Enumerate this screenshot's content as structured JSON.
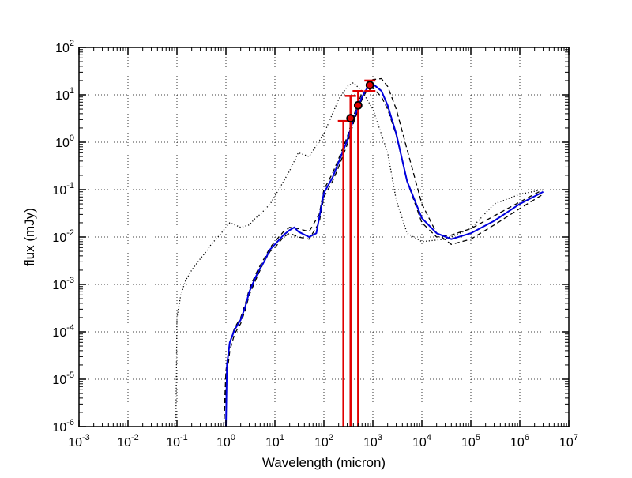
{
  "chart_data": {
    "type": "line",
    "xlabel": "Wavelength (micron)",
    "ylabel": "flux (mJy)",
    "x_scale": "log",
    "y_scale": "log",
    "xlim": [
      0.001,
      10000000
    ],
    "ylim": [
      1e-06,
      100
    ],
    "grid": true,
    "x_ticks": [
      {
        "value": 0.001,
        "base": "10",
        "exp": "-3"
      },
      {
        "value": 0.01,
        "base": "10",
        "exp": "-2"
      },
      {
        "value": 0.1,
        "base": "10",
        "exp": "-1"
      },
      {
        "value": 1,
        "base": "10",
        "exp": "0"
      },
      {
        "value": 10,
        "base": "10",
        "exp": "1"
      },
      {
        "value": 100,
        "base": "10",
        "exp": "2"
      },
      {
        "value": 1000,
        "base": "10",
        "exp": "3"
      },
      {
        "value": 10000,
        "base": "10",
        "exp": "4"
      },
      {
        "value": 100000,
        "base": "10",
        "exp": "5"
      },
      {
        "value": 1000000,
        "base": "10",
        "exp": "6"
      },
      {
        "value": 10000000,
        "base": "10",
        "exp": "7"
      }
    ],
    "y_ticks": [
      {
        "value": 1e-06,
        "base": "10",
        "exp": "-6"
      },
      {
        "value": 1e-05,
        "base": "10",
        "exp": "-5"
      },
      {
        "value": 0.0001,
        "base": "10",
        "exp": "-4"
      },
      {
        "value": 0.001,
        "base": "10",
        "exp": "-3"
      },
      {
        "value": 0.01,
        "base": "10",
        "exp": "-2"
      },
      {
        "value": 0.1,
        "base": "10",
        "exp": "-1"
      },
      {
        "value": 1,
        "base": "10",
        "exp": "0"
      },
      {
        "value": 10,
        "base": "10",
        "exp": "1"
      },
      {
        "value": 100,
        "base": "10",
        "exp": "2"
      }
    ],
    "series": [
      {
        "style": "dotted",
        "color": "#000000",
        "x": [
          0.095,
          0.1,
          0.12,
          0.15,
          0.2,
          0.3,
          0.4,
          0.5,
          0.8,
          1.2,
          2,
          3,
          4,
          5,
          8,
          12,
          20,
          30,
          50,
          100,
          150,
          200,
          300,
          400,
          600,
          1000,
          2000,
          3000,
          5000,
          10000,
          30000,
          100000,
          300000,
          1000000,
          3000000
        ],
        "y": [
          1e-06,
          0.0002,
          0.0006,
          0.0012,
          0.002,
          0.0035,
          0.005,
          0.007,
          0.012,
          0.02,
          0.016,
          0.018,
          0.025,
          0.03,
          0.05,
          0.1,
          0.25,
          0.6,
          0.5,
          1.5,
          4,
          8,
          15,
          18,
          12,
          5,
          0.6,
          0.06,
          0.012,
          0.008,
          0.009,
          0.015,
          0.05,
          0.08,
          0.1
        ]
      },
      {
        "style": "dashed",
        "color": "#000000",
        "x": [
          0.9,
          1.0,
          1.2,
          1.5,
          2,
          2.5,
          3,
          4,
          5,
          6,
          8,
          10,
          15,
          20,
          30,
          50,
          80,
          100,
          150,
          200,
          300,
          400,
          600,
          1000,
          1500,
          2000,
          3000,
          5000,
          10000,
          20000,
          40000,
          100000,
          300000,
          1000000,
          3000000
        ],
        "y": [
          1e-06,
          8e-06,
          4e-05,
          9e-05,
          0.00015,
          0.0003,
          0.0006,
          0.0012,
          0.002,
          0.003,
          0.005,
          0.006,
          0.01,
          0.012,
          0.01,
          0.009,
          0.02,
          0.07,
          0.15,
          0.3,
          0.9,
          2.5,
          8,
          21,
          22,
          15,
          5,
          0.7,
          0.05,
          0.012,
          0.007,
          0.009,
          0.018,
          0.04,
          0.08
        ]
      },
      {
        "style": "dashed",
        "color": "#000000",
        "x": [
          0.9,
          1.0,
          1.2,
          1.5,
          2,
          2.5,
          3,
          4,
          5,
          6,
          8,
          10,
          15,
          20,
          30,
          50,
          80,
          100,
          150,
          200,
          300,
          400,
          600,
          1000,
          1500,
          2000,
          3000,
          5000,
          10000,
          20000,
          40000,
          100000,
          300000,
          1000000,
          3000000
        ],
        "y": [
          1e-06,
          1.5e-05,
          6e-05,
          0.00012,
          0.0002,
          0.0004,
          0.0008,
          0.0016,
          0.0025,
          0.0035,
          0.006,
          0.008,
          0.013,
          0.016,
          0.015,
          0.013,
          0.03,
          0.1,
          0.22,
          0.45,
          1.3,
          3.5,
          11,
          14,
          9,
          5,
          1.4,
          0.15,
          0.02,
          0.01,
          0.011,
          0.015,
          0.028,
          0.055,
          0.1
        ]
      },
      {
        "style": "solid",
        "color": "#0000dd",
        "x": [
          1.0,
          1.05,
          1.2,
          1.5,
          2,
          2.5,
          3,
          4,
          5,
          6,
          8,
          10,
          15,
          20,
          25,
          30,
          50,
          70,
          80,
          100,
          150,
          200,
          300,
          400,
          600,
          800,
          1000,
          1500,
          2000,
          3000,
          5000,
          10000,
          20000,
          40000,
          100000,
          300000,
          1000000,
          3000000
        ],
        "y": [
          1e-06,
          2e-05,
          6e-05,
          0.00011,
          0.00018,
          0.00035,
          0.0007,
          0.0014,
          0.0022,
          0.003,
          0.0055,
          0.007,
          0.011,
          0.014,
          0.016,
          0.013,
          0.01,
          0.012,
          0.025,
          0.085,
          0.18,
          0.38,
          1.1,
          3,
          9,
          15,
          17,
          12,
          6,
          1.5,
          0.15,
          0.025,
          0.012,
          0.009,
          0.012,
          0.022,
          0.05,
          0.09
        ]
      }
    ],
    "errorbars": [
      {
        "x": 250,
        "y": 2.8,
        "low": 1e-06,
        "high": 2.8
      },
      {
        "x": 350,
        "y": 3.2,
        "low": 1e-06,
        "high": 9.5
      },
      {
        "x": 500,
        "y": 6,
        "low": 1e-06,
        "high": 12
      },
      {
        "x": 870,
        "y": 16,
        "low": 12,
        "high": 20
      }
    ],
    "points": [
      {
        "x": 350,
        "y": 3.2
      },
      {
        "x": 500,
        "y": 6
      },
      {
        "x": 870,
        "y": 16
      }
    ]
  }
}
